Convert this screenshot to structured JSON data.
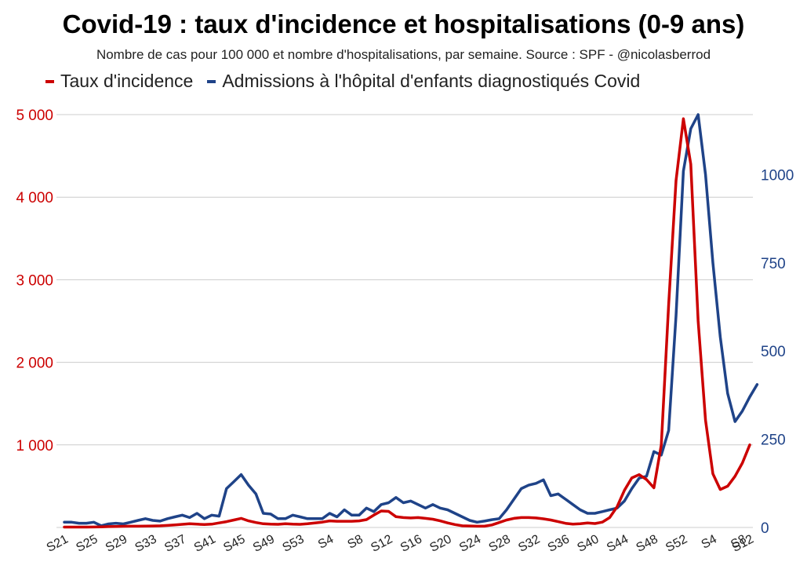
{
  "title": "Covid-19 : taux d'incidence et hospitalisations (0-9 ans)",
  "subtitle": "Nombre de cas pour 100 000 et nombre d'hospitalisations, par semaine. Source : SPF - @nicolasberrod",
  "legend": {
    "series_1": "Taux d'incidence",
    "series_2": "Admissions à l'hôpital d'enfants diagnostiqués Covid"
  },
  "colors": {
    "red": "#cc0000",
    "blue": "#1f4388",
    "grid": "#cccccc"
  },
  "chart_data": {
    "type": "line",
    "x_tick_labels": [
      "S21",
      "S25",
      "S29",
      "S33",
      "S37",
      "S41",
      "S45",
      "S49",
      "S53",
      "S4",
      "S8",
      "S12",
      "S16",
      "S20",
      "S24",
      "S28",
      "S32",
      "S36",
      "S40",
      "S44",
      "S48",
      "S52",
      "S4",
      "S8",
      "S12"
    ],
    "y_left": {
      "ticks": [
        0,
        1000,
        2000,
        3000,
        4000,
        5000
      ],
      "tick_labels": [
        "",
        "1 000",
        "2 000",
        "3 000",
        "4 000",
        "5 000"
      ],
      "lim": [
        0,
        5000
      ]
    },
    "y_right": {
      "ticks": [
        0,
        250,
        500,
        750,
        1000
      ],
      "tick_labels": [
        "0",
        "250",
        "500",
        "750",
        "1000"
      ],
      "lim": [
        0,
        1170
      ]
    },
    "series": [
      {
        "name": "Taux d'incidence",
        "axis": "left",
        "values": [
          5,
          5,
          5,
          5,
          6,
          8,
          10,
          12,
          14,
          15,
          15,
          16,
          18,
          20,
          25,
          30,
          38,
          45,
          40,
          35,
          40,
          55,
          70,
          90,
          110,
          80,
          60,
          45,
          40,
          38,
          45,
          40,
          38,
          45,
          55,
          65,
          80,
          75,
          75,
          75,
          80,
          95,
          150,
          200,
          195,
          130,
          120,
          115,
          120,
          110,
          100,
          80,
          55,
          35,
          20,
          18,
          15,
          15,
          30,
          60,
          90,
          110,
          120,
          120,
          115,
          105,
          90,
          70,
          50,
          40,
          45,
          55,
          48,
          65,
          120,
          250,
          450,
          600,
          640,
          580,
          480,
          1000,
          2700,
          4200,
          4950,
          4400,
          2500,
          1300,
          650,
          460,
          500,
          620,
          780,
          1000
        ]
      },
      {
        "name": "Admissions à l'hôpital d'enfants diagnostiqués Covid",
        "axis": "right",
        "values": [
          15,
          15,
          12,
          12,
          15,
          5,
          10,
          12,
          10,
          15,
          20,
          25,
          20,
          18,
          25,
          30,
          35,
          28,
          40,
          25,
          35,
          32,
          110,
          130,
          150,
          120,
          95,
          40,
          38,
          25,
          25,
          35,
          30,
          25,
          25,
          25,
          40,
          30,
          50,
          35,
          35,
          55,
          45,
          65,
          70,
          85,
          70,
          75,
          65,
          55,
          65,
          55,
          50,
          40,
          30,
          20,
          15,
          18,
          22,
          25,
          50,
          80,
          110,
          120,
          125,
          135,
          90,
          95,
          80,
          65,
          50,
          40,
          40,
          45,
          50,
          55,
          75,
          110,
          140,
          145,
          215,
          205,
          275,
          600,
          1010,
          1130,
          1170,
          1000,
          750,
          540,
          380,
          300,
          330,
          370,
          405
        ]
      }
    ]
  }
}
